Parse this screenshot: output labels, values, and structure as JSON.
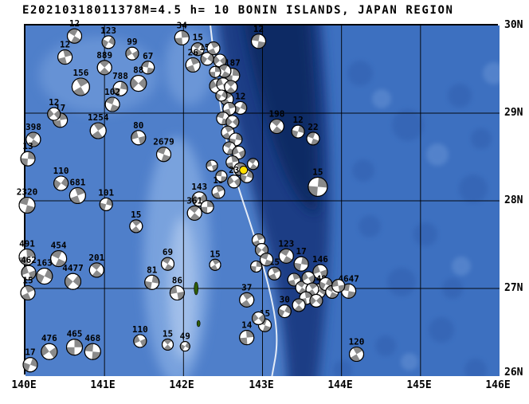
{
  "title": "E20210318011378M=4.5 h= 10 BONIN ISLANDS, JAPAN REGION",
  "map": {
    "x_ticks": [
      "140E",
      "141E",
      "142E",
      "143E",
      "144E",
      "145E",
      "146E"
    ],
    "y_ticks": [
      "30N",
      "29N",
      "28N",
      "27N",
      "26N"
    ],
    "lon_range": [
      140,
      146
    ],
    "lat_range": [
      26,
      30
    ]
  },
  "colors": {
    "ocean_base": "#4f7fca",
    "ocean_light": "#7ea6e0",
    "ocean_bright": "#a9c4ec",
    "ocean_right": "#3e6fc0",
    "trench": "#1c3d85",
    "trench_dark": "#0f2c63",
    "seamount": "#2e5cab",
    "land": "#2e5c08",
    "ball_fill": "#ffffff",
    "ball_shade": "#8a8a8a",
    "outline": "#000000",
    "epicenter": "#ffdf00",
    "trench_axis_line": "#ffffff"
  },
  "chart_data": {
    "type": "map",
    "title": "E20210318011378M=4.5 h= 10 BONIN ISLANDS, JAPAN REGION",
    "event_id": "E20210318011378",
    "magnitude_label": "M=4.5",
    "depth_label": "h= 10",
    "region_label": "BONIN ISLANDS, JAPAN REGION",
    "lon_range": [
      140,
      146
    ],
    "lat_range": [
      26,
      30
    ],
    "events": [
      [
        140.62,
        29.88,
        "12",
        9,
        30
      ],
      [
        141.05,
        29.81,
        "123",
        8,
        120
      ],
      [
        140.5,
        29.64,
        "12",
        9,
        75
      ],
      [
        141.35,
        29.68,
        "99",
        8,
        150
      ],
      [
        141.0,
        29.52,
        "889",
        9,
        45
      ],
      [
        141.55,
        29.52,
        "67",
        8,
        10
      ],
      [
        140.7,
        29.3,
        "156",
        11,
        60
      ],
      [
        141.2,
        29.28,
        "788",
        9,
        100
      ],
      [
        141.43,
        29.34,
        "88",
        10,
        135
      ],
      [
        141.1,
        29.1,
        "102",
        9,
        20
      ],
      [
        140.44,
        28.92,
        "17",
        9,
        80
      ],
      [
        140.36,
        28.99,
        "12",
        8,
        140
      ],
      [
        140.92,
        28.8,
        "1254",
        10,
        55
      ],
      [
        141.43,
        28.72,
        "80",
        9,
        165
      ],
      [
        140.1,
        28.7,
        "398",
        9,
        35
      ],
      [
        140.03,
        28.48,
        "13",
        9,
        95
      ],
      [
        140.45,
        28.2,
        "110",
        9,
        125
      ],
      [
        140.66,
        28.06,
        "681",
        10,
        70
      ],
      [
        140.02,
        27.95,
        "2320",
        10,
        15
      ],
      [
        141.02,
        27.96,
        "101",
        8,
        105
      ],
      [
        141.4,
        27.71,
        "15",
        8,
        50
      ],
      [
        140.02,
        27.36,
        "491",
        10,
        85
      ],
      [
        140.42,
        27.34,
        "454",
        10,
        25
      ],
      [
        140.24,
        27.14,
        "163",
        10,
        115
      ],
      [
        140.04,
        27.18,
        "462",
        9,
        160
      ],
      [
        140.9,
        27.21,
        "201",
        9,
        40
      ],
      [
        140.6,
        27.08,
        "4477",
        10,
        130
      ],
      [
        140.03,
        26.95,
        "15",
        9,
        65
      ],
      [
        140.3,
        26.28,
        "476",
        10,
        145
      ],
      [
        140.62,
        26.33,
        "465",
        10,
        90
      ],
      [
        140.85,
        26.28,
        "468",
        10,
        5
      ],
      [
        140.06,
        26.13,
        "17",
        9,
        110
      ],
      [
        141.45,
        26.4,
        "110",
        8,
        155
      ],
      [
        141.8,
        26.36,
        "15",
        7,
        45
      ],
      [
        142.02,
        26.34,
        "49",
        6,
        120
      ],
      [
        141.8,
        27.28,
        "69",
        8,
        30
      ],
      [
        141.6,
        27.07,
        "81",
        9,
        100
      ],
      [
        141.92,
        26.95,
        "86",
        9,
        170
      ],
      [
        142.4,
        27.27,
        "15",
        7,
        60
      ],
      [
        141.75,
        28.53,
        "2679",
        9,
        20
      ],
      [
        141.98,
        29.86,
        "34",
        9,
        85
      ],
      [
        142.18,
        29.73,
        "15",
        8,
        35
      ],
      [
        142.3,
        29.62,
        "153",
        8,
        125
      ],
      [
        142.12,
        29.55,
        "26",
        9,
        70
      ],
      [
        142.95,
        29.82,
        "12",
        9,
        10
      ],
      [
        142.62,
        29.43,
        "187",
        9,
        95
      ],
      [
        142.42,
        29.31,
        "12",
        9,
        150
      ],
      [
        142.55,
        29.16,
        "15",
        8,
        55
      ],
      [
        142.72,
        29.06,
        "12",
        8,
        115
      ],
      [
        143.18,
        28.85,
        "198",
        9,
        40
      ],
      [
        143.45,
        28.79,
        "12",
        8,
        105
      ],
      [
        143.64,
        28.71,
        "22",
        8,
        20
      ],
      [
        142.38,
        29.74,
        "",
        8,
        65
      ],
      [
        142.46,
        29.6,
        "",
        8,
        140
      ],
      [
        142.52,
        29.48,
        "",
        8,
        30
      ],
      [
        142.4,
        29.47,
        "",
        7,
        90
      ],
      [
        142.5,
        29.33,
        "",
        8,
        160
      ],
      [
        142.6,
        29.3,
        "",
        8,
        45
      ],
      [
        142.48,
        29.2,
        "",
        7,
        120
      ],
      [
        142.58,
        29.05,
        "",
        8,
        75
      ],
      [
        142.5,
        28.94,
        "",
        8,
        15
      ],
      [
        142.62,
        28.9,
        "",
        8,
        135
      ],
      [
        142.56,
        28.78,
        "",
        8,
        60
      ],
      [
        142.66,
        28.7,
        "",
        8,
        100
      ],
      [
        142.58,
        28.6,
        "",
        8,
        25
      ],
      [
        142.7,
        28.55,
        "",
        8,
        155
      ],
      [
        142.62,
        28.44,
        "",
        8,
        80
      ],
      [
        142.72,
        28.36,
        "",
        8,
        50
      ],
      [
        142.8,
        28.28,
        "",
        8,
        110
      ],
      [
        142.88,
        28.42,
        "",
        7,
        35
      ],
      [
        142.64,
        28.22,
        "23",
        8,
        145
      ],
      [
        142.44,
        28.1,
        "15",
        8,
        70
      ],
      [
        142.2,
        28.02,
        "143",
        9,
        130
      ],
      [
        142.14,
        27.86,
        "361",
        9,
        40
      ],
      [
        142.3,
        27.93,
        "",
        8,
        90
      ],
      [
        142.48,
        28.28,
        "",
        7,
        5
      ],
      [
        142.36,
        28.4,
        "",
        7,
        165
      ],
      [
        143.7,
        28.16,
        "15",
        12,
        95
      ],
      [
        142.8,
        26.87,
        "37",
        9,
        55
      ],
      [
        143.28,
        26.74,
        "30",
        8,
        115
      ],
      [
        143.03,
        26.58,
        "15",
        8,
        20
      ],
      [
        142.8,
        26.44,
        "14",
        9,
        85
      ],
      [
        142.95,
        26.66,
        "",
        8,
        140
      ],
      [
        143.3,
        27.37,
        "123",
        9,
        30
      ],
      [
        143.49,
        27.28,
        "17",
        9,
        100
      ],
      [
        143.73,
        27.19,
        "146",
        9,
        160
      ],
      [
        143.15,
        27.17,
        "15",
        8,
        65
      ],
      [
        143.71,
        26.97,
        "448",
        9,
        125
      ],
      [
        144.09,
        26.97,
        "4647",
        9,
        10
      ],
      [
        143.4,
        27.1,
        "",
        8,
        75
      ],
      [
        143.5,
        27.01,
        "",
        8,
        35
      ],
      [
        143.58,
        27.12,
        "",
        8,
        150
      ],
      [
        143.63,
        26.99,
        "",
        8,
        55
      ],
      [
        143.8,
        27.05,
        "",
        8,
        115
      ],
      [
        143.88,
        26.96,
        "",
        8,
        25
      ],
      [
        143.96,
        27.03,
        "",
        8,
        170
      ],
      [
        143.55,
        26.89,
        "",
        8,
        80
      ],
      [
        143.46,
        26.81,
        "",
        8,
        45
      ],
      [
        143.68,
        26.86,
        "",
        8,
        135
      ],
      [
        144.19,
        26.25,
        "120",
        9,
        60
      ],
      [
        142.95,
        27.55,
        "",
        8,
        70
      ],
      [
        142.99,
        27.44,
        "",
        8,
        130
      ],
      [
        143.05,
        27.33,
        "",
        8,
        20
      ],
      [
        142.92,
        27.25,
        "",
        7,
        95
      ]
    ],
    "epicenter": {
      "lon": 142.76,
      "lat": 28.35
    },
    "islands": [
      {
        "lon": 142.16,
        "lat": 27.0,
        "rx": 2.5,
        "ry": 8
      },
      {
        "lon": 142.19,
        "lat": 26.6,
        "rx": 2.0,
        "ry": 4
      }
    ],
    "trench_axis": [
      [
        142.34,
        30.0
      ],
      [
        142.44,
        29.2
      ],
      [
        142.6,
        28.4
      ],
      [
        142.9,
        27.6
      ],
      [
        143.12,
        26.9
      ],
      [
        143.2,
        26.4
      ],
      [
        143.12,
        26.0
      ]
    ]
  }
}
